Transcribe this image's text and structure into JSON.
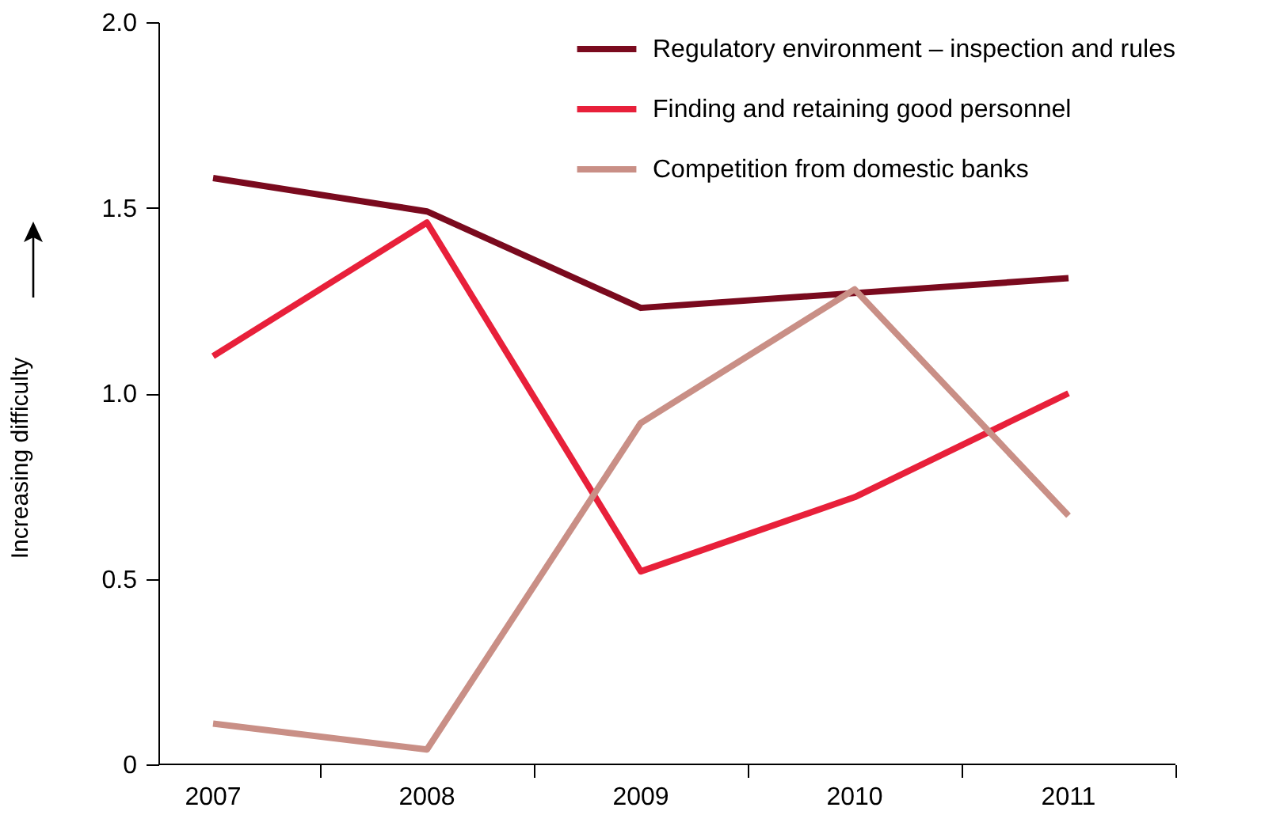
{
  "chart_data": {
    "type": "line",
    "ylabel": "Increasing difficulty",
    "categories": [
      "2007",
      "2008",
      "2009",
      "2010",
      "2011"
    ],
    "series": [
      {
        "name": "Regulatory environment – inspection and rules",
        "color": "#7a0a1e",
        "values": [
          1.58,
          1.49,
          1.23,
          1.27,
          1.31
        ]
      },
      {
        "name": "Finding and retaining good personnel",
        "color": "#e8203a",
        "values": [
          1.1,
          1.46,
          0.52,
          0.72,
          1.0
        ]
      },
      {
        "name": "Competition from domestic banks",
        "color": "#c98f86",
        "values": [
          0.11,
          0.04,
          0.92,
          1.28,
          0.67
        ]
      }
    ],
    "ylim": [
      0,
      2.0
    ],
    "yticks": [
      {
        "value": 0,
        "label": "0"
      },
      0.5,
      {
        "value": 1,
        "label": "1.0"
      },
      1.5,
      {
        "value": 2,
        "label": "2.0"
      }
    ],
    "grid": false,
    "legend": "top right",
    "marker": "none",
    "line_style": "solid"
  }
}
